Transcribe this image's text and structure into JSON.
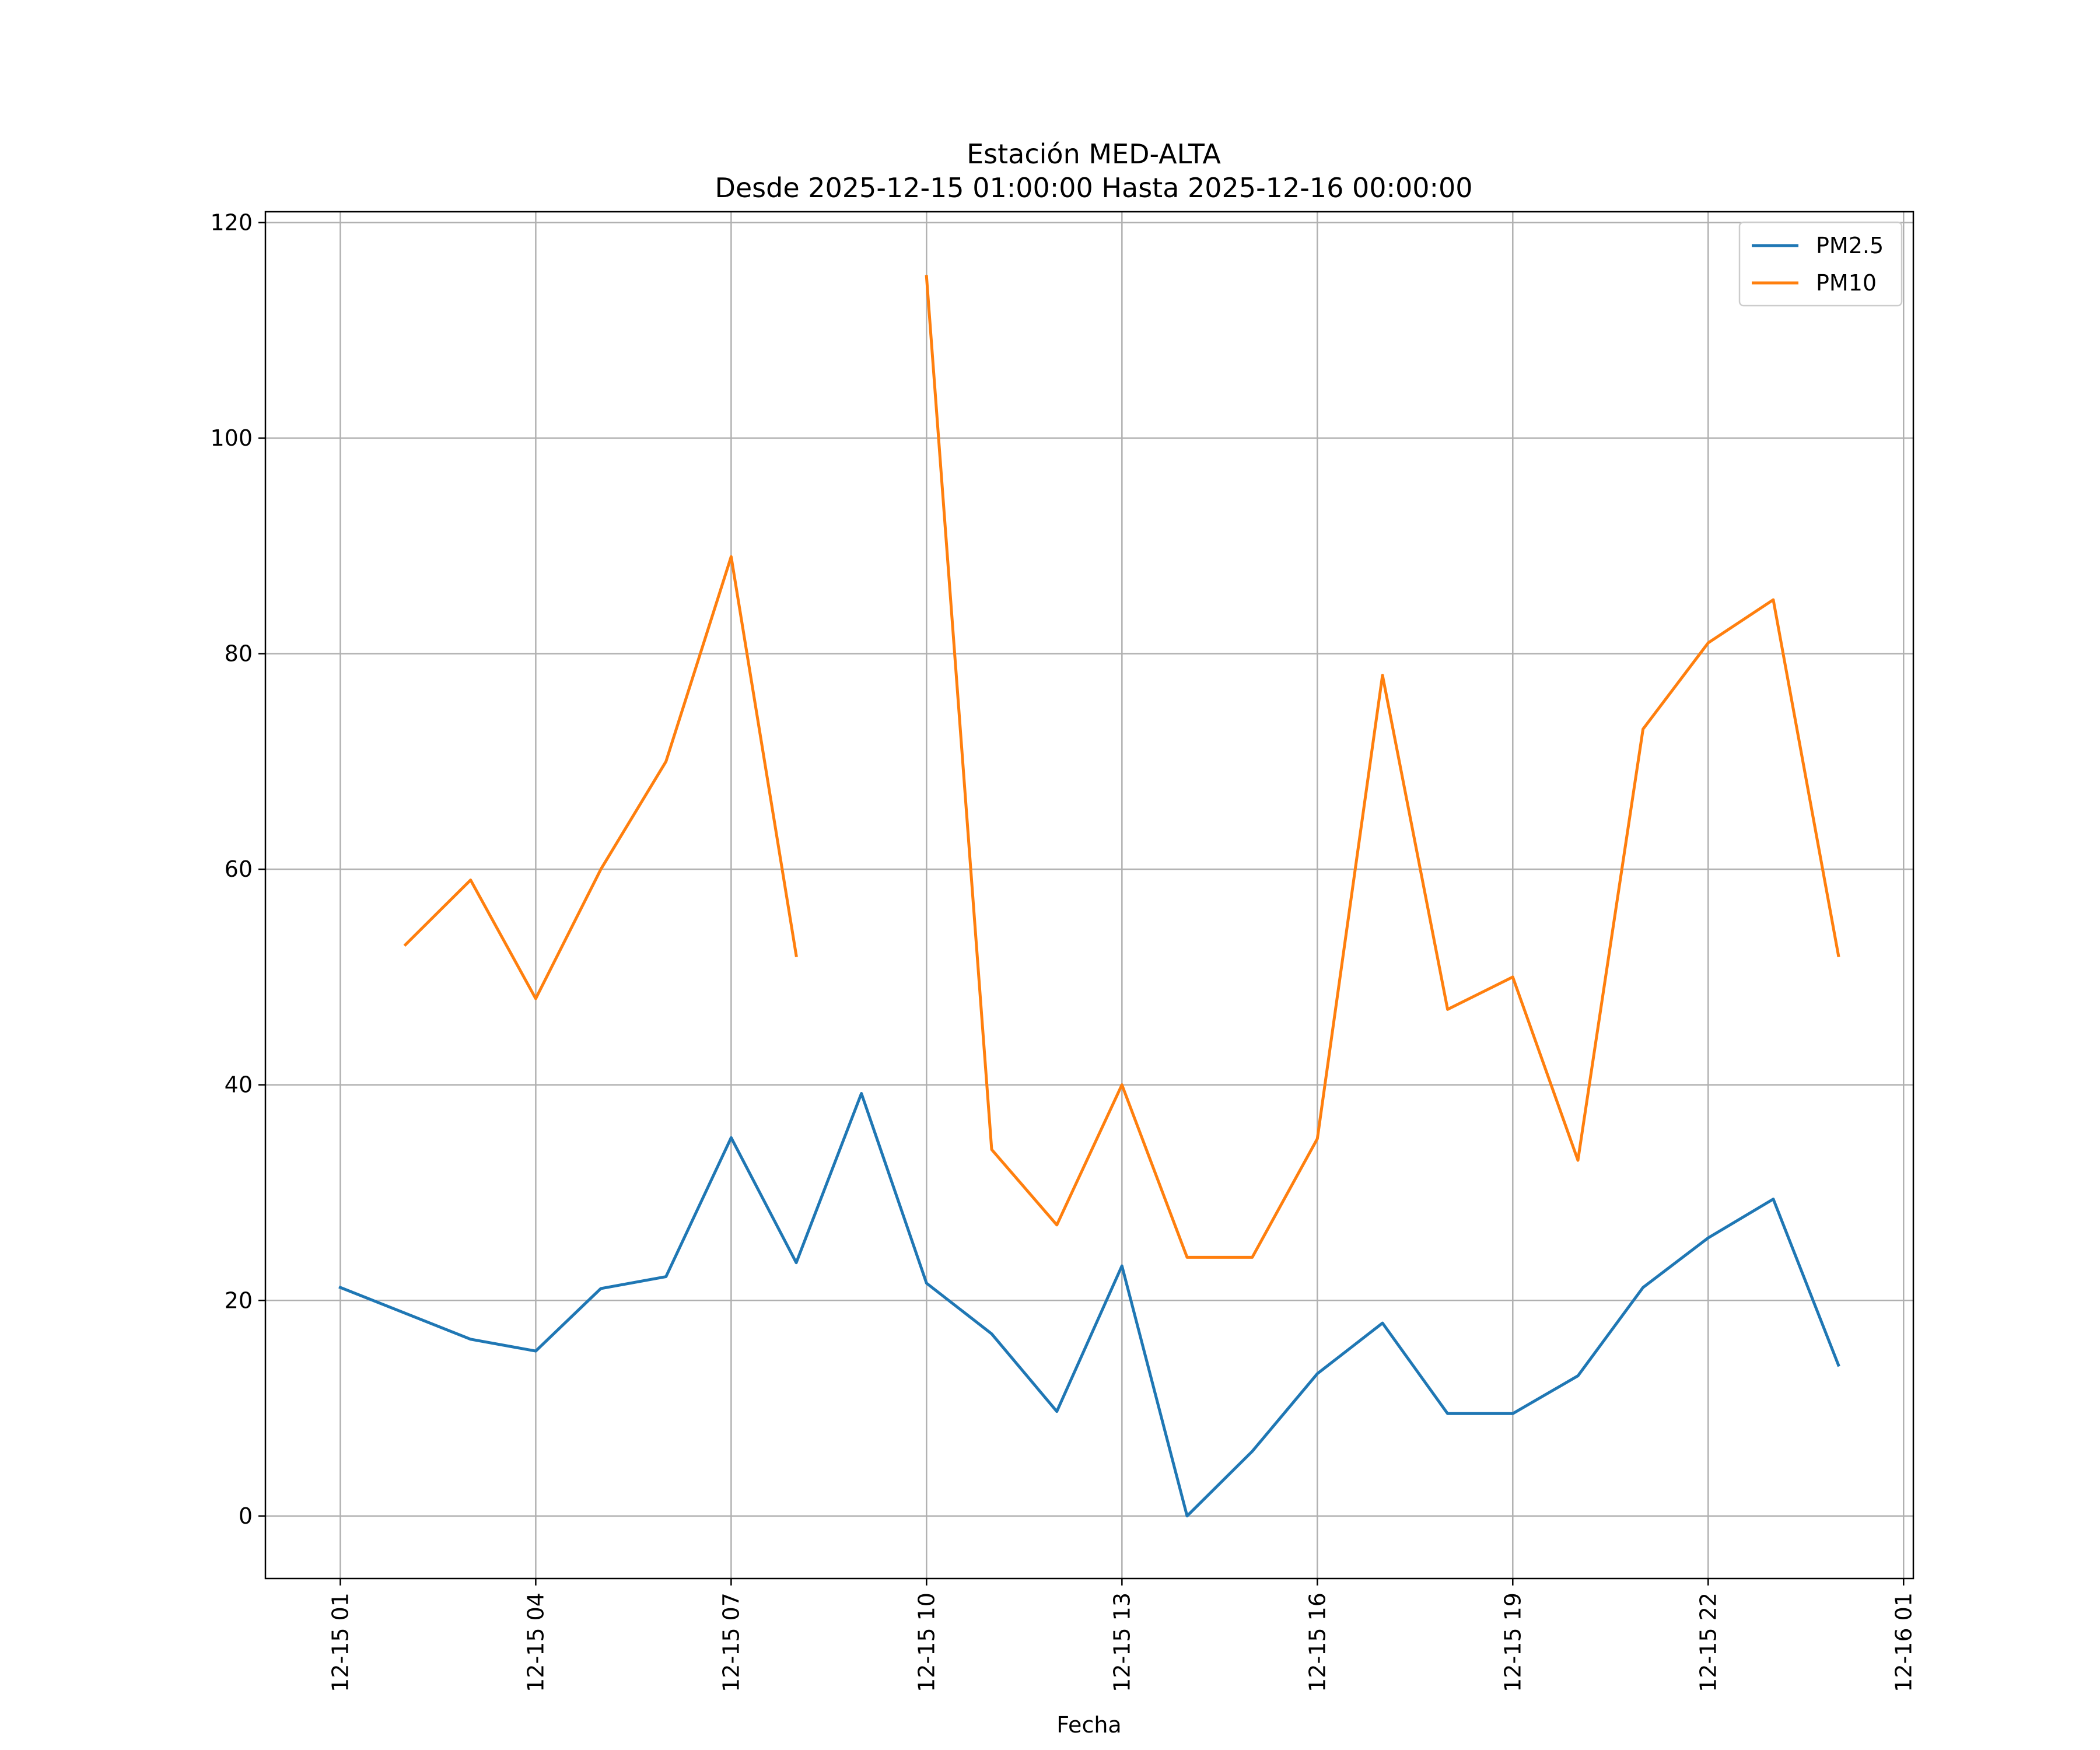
{
  "chart_data": {
    "type": "line",
    "title_line1": "Estación MED-ALTA",
    "title_line2": "Desde 2025-12-15 01:00:00 Hasta 2025-12-16 00:00:00",
    "xlabel": "Fecha",
    "ylabel": "",
    "ylim": [
      -5.8,
      121
    ],
    "yticks": [
      0,
      20,
      40,
      60,
      80,
      100,
      120
    ],
    "xlim_hours": [
      -1.15,
      24.15
    ],
    "xticks": [
      {
        "hour": 0,
        "label": "12-15 01"
      },
      {
        "hour": 3,
        "label": "12-15 04"
      },
      {
        "hour": 6,
        "label": "12-15 07"
      },
      {
        "hour": 9,
        "label": "12-15 10"
      },
      {
        "hour": 12,
        "label": "12-15 13"
      },
      {
        "hour": 15,
        "label": "12-15 16"
      },
      {
        "hour": 18,
        "label": "12-15 19"
      },
      {
        "hour": 21,
        "label": "12-15 22"
      },
      {
        "hour": 24,
        "label": "12-16 01"
      }
    ],
    "grid": true,
    "legend_position": "top-right",
    "series": [
      {
        "name": "PM2.5",
        "color": "#1f77b4",
        "values": [
          21.2,
          18.8,
          16.4,
          15.3,
          21.1,
          22.2,
          35.1,
          23.5,
          39.2,
          21.6,
          16.9,
          9.7,
          23.2,
          0.0,
          6.0,
          13.2,
          17.9,
          9.5,
          9.5,
          13.0,
          21.2,
          25.8,
          29.4,
          14.0
        ]
      },
      {
        "name": "PM10",
        "color": "#ff7f0e",
        "values": [
          null,
          53,
          59,
          48,
          60,
          70,
          89,
          52,
          null,
          115,
          34,
          27,
          40,
          24,
          24,
          35,
          78,
          47,
          50,
          33,
          73,
          81,
          85,
          52
        ]
      }
    ]
  }
}
